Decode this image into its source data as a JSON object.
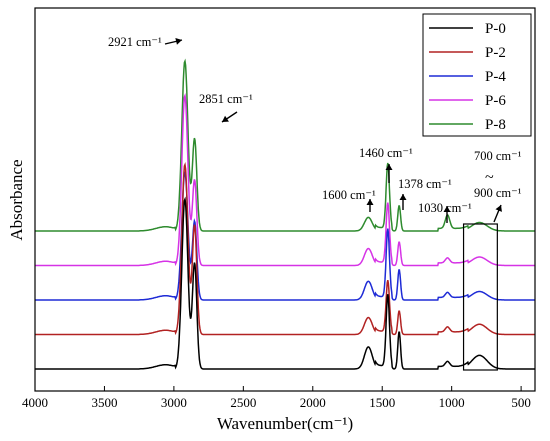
{
  "chart_data": {
    "type": "line",
    "title": "",
    "xlabel": "Wavenumber(cm⁻¹)",
    "ylabel": "Absorbance",
    "xlim": [
      4000,
      400
    ],
    "x_reversed": true,
    "x_ticks": [
      4000,
      3500,
      3000,
      2500,
      2000,
      1500,
      1000,
      500
    ],
    "y_ticks_shown": false,
    "grid": false,
    "legend_position": "top-right",
    "series_note": "Spectra are vertically offset (stacked).",
    "series": [
      {
        "name": "P-0",
        "color": "#000000",
        "offset": 0,
        "peaks": [
          [
            2921,
            1.0
          ],
          [
            2851,
            0.62
          ],
          [
            1600,
            0.13
          ],
          [
            1460,
            0.42
          ],
          [
            1378,
            0.22
          ],
          [
            1030,
            0.03
          ],
          [
            800,
            0.08
          ]
        ]
      },
      {
        "name": "P-2",
        "color": "#b22222",
        "offset": 1,
        "peaks": [
          [
            2921,
            1.0
          ],
          [
            2851,
            0.64
          ],
          [
            1600,
            0.1
          ],
          [
            1460,
            0.3
          ],
          [
            1378,
            0.14
          ],
          [
            1030,
            0.03
          ],
          [
            800,
            0.06
          ]
        ]
      },
      {
        "name": "P-4",
        "color": "#1e2bd6",
        "offset": 2,
        "peaks": [
          [
            2921,
            0.75
          ],
          [
            2851,
            0.46
          ],
          [
            1600,
            0.11
          ],
          [
            1460,
            0.4
          ],
          [
            1378,
            0.18
          ],
          [
            1030,
            0.03
          ],
          [
            800,
            0.05
          ]
        ]
      },
      {
        "name": "P-6",
        "color": "#d633e6",
        "offset": 3,
        "peaks": [
          [
            2921,
            1.0
          ],
          [
            2851,
            0.5
          ],
          [
            1600,
            0.1
          ],
          [
            1460,
            0.35
          ],
          [
            1378,
            0.14
          ],
          [
            1030,
            0.03
          ],
          [
            800,
            0.05
          ]
        ]
      },
      {
        "name": "P-8",
        "color": "#2e8b2e",
        "offset": 4,
        "peaks": [
          [
            2921,
            1.0
          ],
          [
            2851,
            0.54
          ],
          [
            1600,
            0.08
          ],
          [
            1460,
            0.38
          ],
          [
            1378,
            0.15
          ],
          [
            1030,
            0.08
          ],
          [
            800,
            0.05
          ]
        ]
      }
    ],
    "annotations": [
      {
        "id": "2921",
        "label": "2921 cm⁻¹"
      },
      {
        "id": "2851",
        "label": "2851 cm⁻¹"
      },
      {
        "id": "1600",
        "label": "1600 cm⁻¹"
      },
      {
        "id": "1460",
        "label": "1460 cm⁻¹"
      },
      {
        "id": "1378",
        "label": "1378 cm⁻¹"
      },
      {
        "id": "1030",
        "label": "1030 cm⁻¹"
      },
      {
        "id": "700",
        "label": "700 cm⁻¹"
      },
      {
        "id": "tilde",
        "label": "~"
      },
      {
        "id": "900",
        "label": "900 cm⁻¹"
      }
    ],
    "highlight_region": [
      900,
      700
    ]
  }
}
